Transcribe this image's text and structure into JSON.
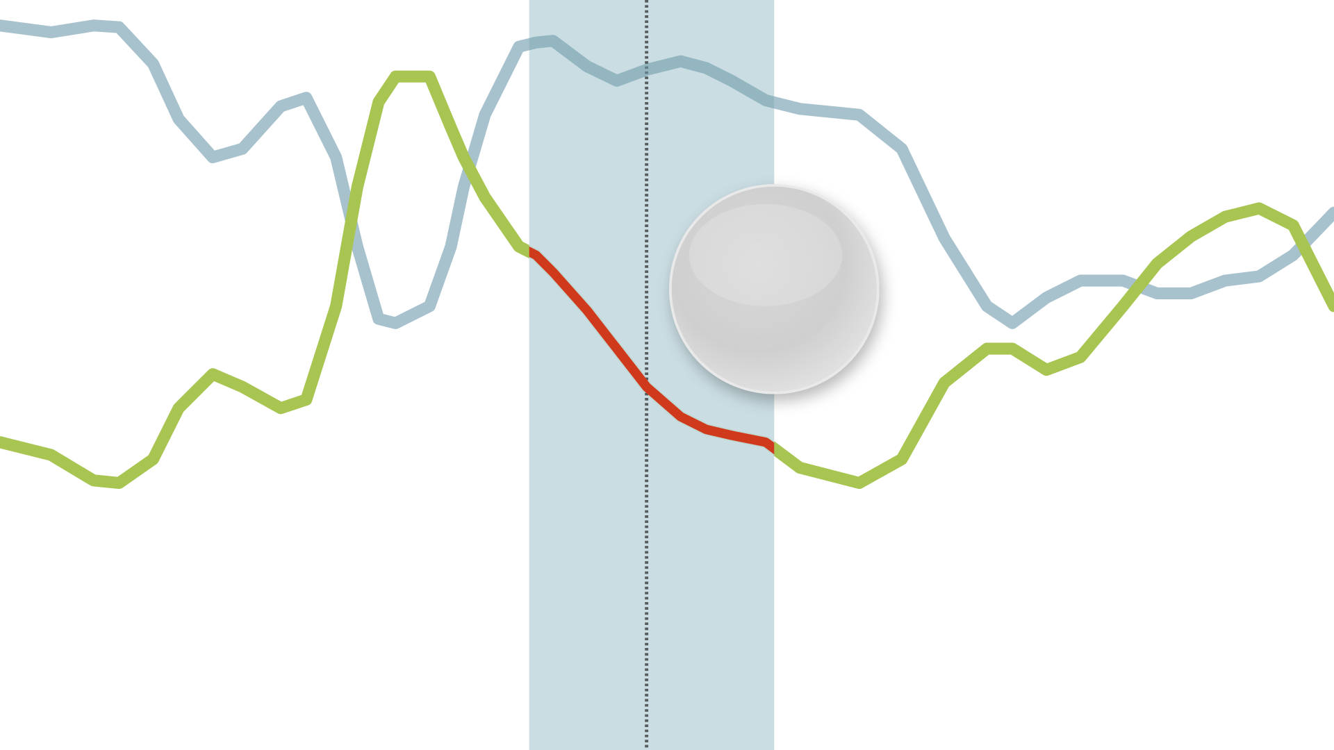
{
  "chart_data": {
    "type": "line",
    "title": "",
    "xlabel": "",
    "ylabel": "",
    "grid": false,
    "legend": "none",
    "xlim": [
      0,
      1568
    ],
    "ylim": [
      0,
      882
    ],
    "x": [
      0,
      60,
      110,
      140,
      180,
      210,
      250,
      285,
      330,
      360,
      395,
      420,
      445,
      465,
      505,
      530,
      545,
      570,
      610,
      630,
      650,
      690,
      725,
      760,
      800,
      830,
      860,
      900,
      940,
      1010,
      1060,
      1110,
      1160,
      1190,
      1230,
      1270,
      1320,
      1360,
      1400,
      1440,
      1480,
      1520,
      1568
    ],
    "series": [
      {
        "color": "#a3bfca",
        "values": [
          30,
          38,
          30,
          32,
          75,
          140,
          185,
          175,
          125,
          115,
          185,
          290,
          375,
          380,
          360,
          290,
          220,
          135,
          55,
          50,
          48,
          78,
          95,
          82,
          72,
          80,
          95,
          118,
          128,
          135,
          175,
          280,
          360,
          380,
          350,
          330,
          330,
          345,
          345,
          330,
          325,
          300,
          250
        ]
      },
      {
        "color": "#a7c550",
        "values": [
          520,
          535,
          565,
          568,
          540,
          480,
          440,
          455,
          480,
          470,
          360,
          220,
          120,
          90,
          90,
          150,
          185,
          232,
          290,
          300,
          320,
          365,
          410,
          455,
          490,
          505,
          512,
          520,
          550,
          568,
          540,
          450,
          410,
          410,
          435,
          420,
          360,
          310,
          278,
          255,
          245,
          265,
          360
        ]
      }
    ],
    "highlight": {
      "band": [
        622,
        910
      ],
      "marker_x": 760,
      "band_color": "#c4d9e0",
      "marker_color": "#333333",
      "segment_color": "#d03a1c",
      "handle_color": "#dcdcdc"
    }
  }
}
